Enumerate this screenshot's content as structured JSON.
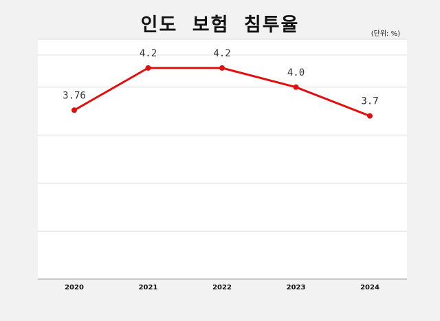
{
  "chart_data": {
    "type": "line",
    "title": "인도 보험 침투율",
    "unit_note": "(단위: %)",
    "categories": [
      "2020",
      "2021",
      "2022",
      "2023",
      "2024"
    ],
    "series": [
      {
        "values": [
          3.76,
          4.2,
          4.2,
          4.0,
          3.7
        ],
        "labels": [
          "3.76",
          "4.2",
          "4.2",
          "4.0",
          "3.7"
        ],
        "color": "#e01010"
      }
    ],
    "ylim": [
      2.0,
      4.5
    ],
    "grid": true
  }
}
